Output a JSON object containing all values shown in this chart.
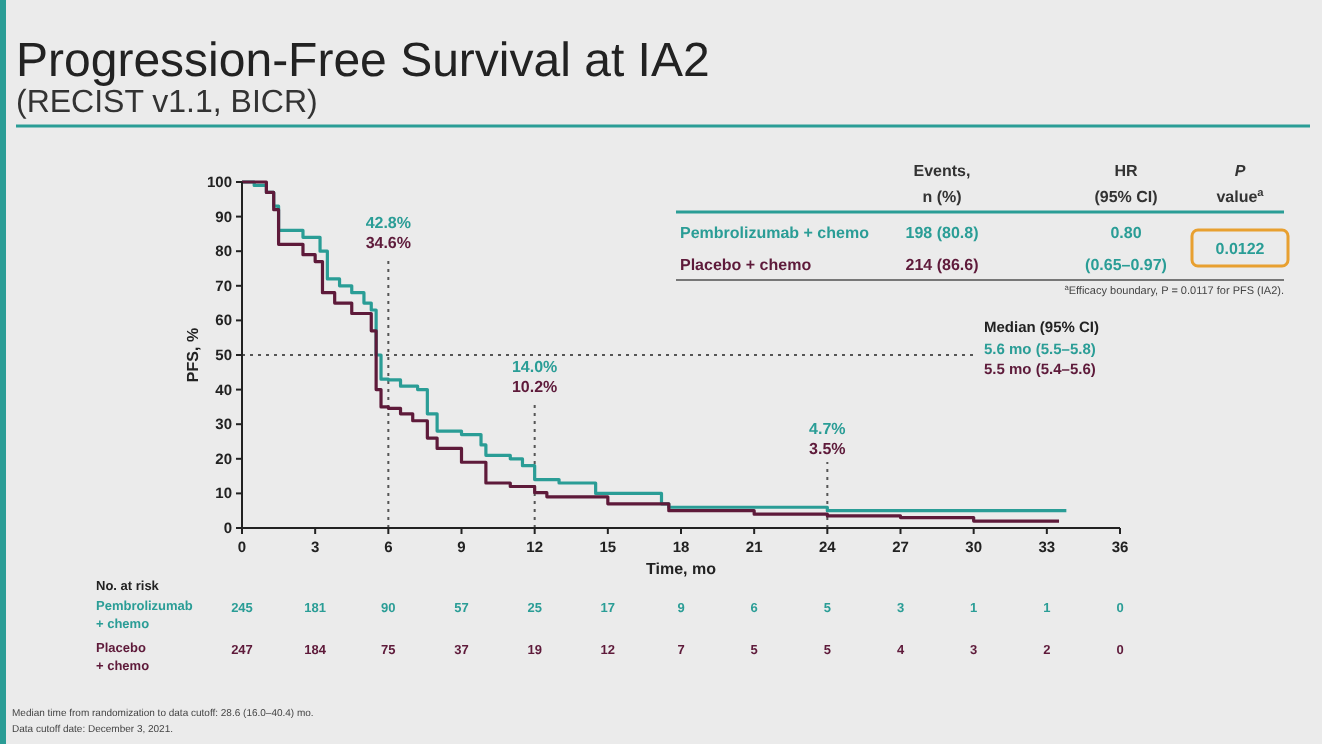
{
  "chart_data": {
    "type": "step",
    "title": "Progression-Free Survival at IA2",
    "subtitle": "(RECIST v1.1, BICR)",
    "xlabel": "Time, mo",
    "ylabel": "PFS, %",
    "xlim": [
      0,
      36
    ],
    "xticks": [
      0,
      3,
      6,
      9,
      12,
      15,
      18,
      21,
      24,
      27,
      30,
      33,
      36
    ],
    "ylim": [
      0,
      100
    ],
    "yticks": [
      0,
      10,
      20,
      30,
      40,
      50,
      60,
      70,
      80,
      90,
      100
    ],
    "series": [
      {
        "name": "Pembrolizumab + chemo",
        "color": "#2a9d96",
        "x": [
          0,
          0.5,
          1,
          1.3,
          1.5,
          2.5,
          3.2,
          3.5,
          4,
          4.5,
          5,
          5.3,
          5.5,
          5.7,
          6,
          6.5,
          7.2,
          7.6,
          8,
          9,
          9.8,
          10,
          11,
          11.5,
          12,
          13,
          14.5,
          17.2,
          17.5,
          24,
          33.8
        ],
        "values": [
          100,
          99,
          97,
          93,
          86,
          84,
          80,
          72,
          70,
          68,
          65,
          63,
          50,
          43,
          42.8,
          41,
          40,
          33,
          28,
          27,
          24,
          21,
          20,
          18,
          14,
          13,
          10,
          7,
          6,
          5,
          5
        ]
      },
      {
        "name": "Placebo + chemo",
        "color": "#5e1a3a",
        "x": [
          0,
          1,
          1.3,
          1.5,
          2.5,
          3,
          3.3,
          3.8,
          4.5,
          5.3,
          5.5,
          5.7,
          6,
          6.5,
          7,
          7.6,
          8,
          9,
          10,
          11,
          12,
          12.5,
          15,
          17.5,
          21,
          24,
          27,
          30,
          33.5
        ],
        "values": [
          100,
          97,
          92,
          82,
          79,
          77,
          68,
          65,
          62,
          57,
          40,
          35,
          34.6,
          33,
          31,
          26,
          23,
          19,
          13,
          12,
          10.2,
          9,
          7,
          5,
          4,
          3.5,
          3,
          2,
          2
        ]
      }
    ],
    "ref_lines": [
      {
        "axis": "y",
        "value": 50,
        "line_style": "dotted"
      },
      {
        "axis": "x",
        "value": 6,
        "line_style": "dotted"
      },
      {
        "axis": "x",
        "value": 12,
        "line_style": "dotted"
      },
      {
        "axis": "x",
        "value": 24,
        "line_style": "dotted"
      }
    ],
    "annotations": [
      "42.8%",
      "34.6%",
      "14.0%",
      "10.2%",
      "4.7%",
      "3.5%",
      "Events,",
      "n (%)",
      "HR",
      "(95% CI)",
      "P",
      "value$^{a}$",
      "198 (80.8)",
      "0.80",
      "(0.65–0.97)",
      "0.0122",
      "214 (86.6)",
      "$^{a}$Efficacy boundary, P = 0.0117 for PFS (IA2).",
      "Median (95% CI)",
      "5.6 mo (5.5–5.8)",
      "5.5 mo (5.4–5.6)",
      "No. at risk",
      "Pembrolizumab",
      "+ chemo",
      "Placebo",
      "+ chemo",
      "245",
      "181",
      "90",
      "57",
      "25",
      "17",
      "9",
      "6",
      "5",
      "3",
      "1",
      "1",
      "0",
      "247",
      "184",
      "75",
      "37",
      "19",
      "12",
      "7",
      "5",
      "5",
      "4",
      "3",
      "2",
      "0",
      "Median time from randomization to data cutoff: 28.6 (16.0–40.4) mo.",
      "Data cutoff date: December 3, 2021."
    ]
  }
}
